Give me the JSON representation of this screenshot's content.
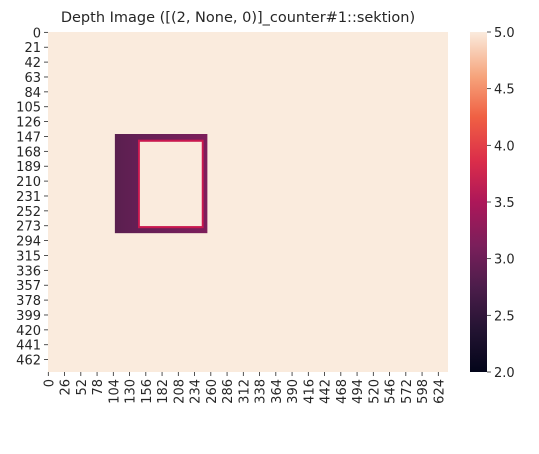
{
  "chart_data": {
    "type": "heatmap",
    "title": "Depth Image ([(2, None, 0)]_counter#1::sektion)",
    "width": 640,
    "height": 480,
    "background_value": 5.0,
    "x_ticks": [
      0,
      26,
      52,
      78,
      104,
      130,
      156,
      182,
      208,
      234,
      260,
      286,
      312,
      338,
      364,
      390,
      416,
      442,
      468,
      494,
      520,
      546,
      572,
      598,
      624
    ],
    "y_ticks": [
      0,
      21,
      42,
      63,
      84,
      105,
      126,
      147,
      168,
      189,
      210,
      231,
      252,
      273,
      294,
      315,
      336,
      357,
      378,
      399,
      420,
      441,
      462
    ],
    "colorbar": {
      "min": 2.0,
      "max": 5.0,
      "ticks": [
        2.0,
        2.5,
        3.0,
        3.5,
        4.0,
        4.5,
        5.0
      ],
      "tick_labels": [
        "2.0",
        "2.5",
        "3.0",
        "3.5",
        "4.0",
        "4.5",
        "5.0"
      ],
      "colormap": "rocket"
    },
    "object": {
      "name": "drawer frame",
      "x": [
        107,
        255
      ],
      "y": [
        144,
        284
      ],
      "inner_x": [
        147,
        246
      ],
      "inner_y": [
        155,
        274
      ],
      "outer_value": 2.85,
      "inner_edge_value": 3.35
    }
  }
}
